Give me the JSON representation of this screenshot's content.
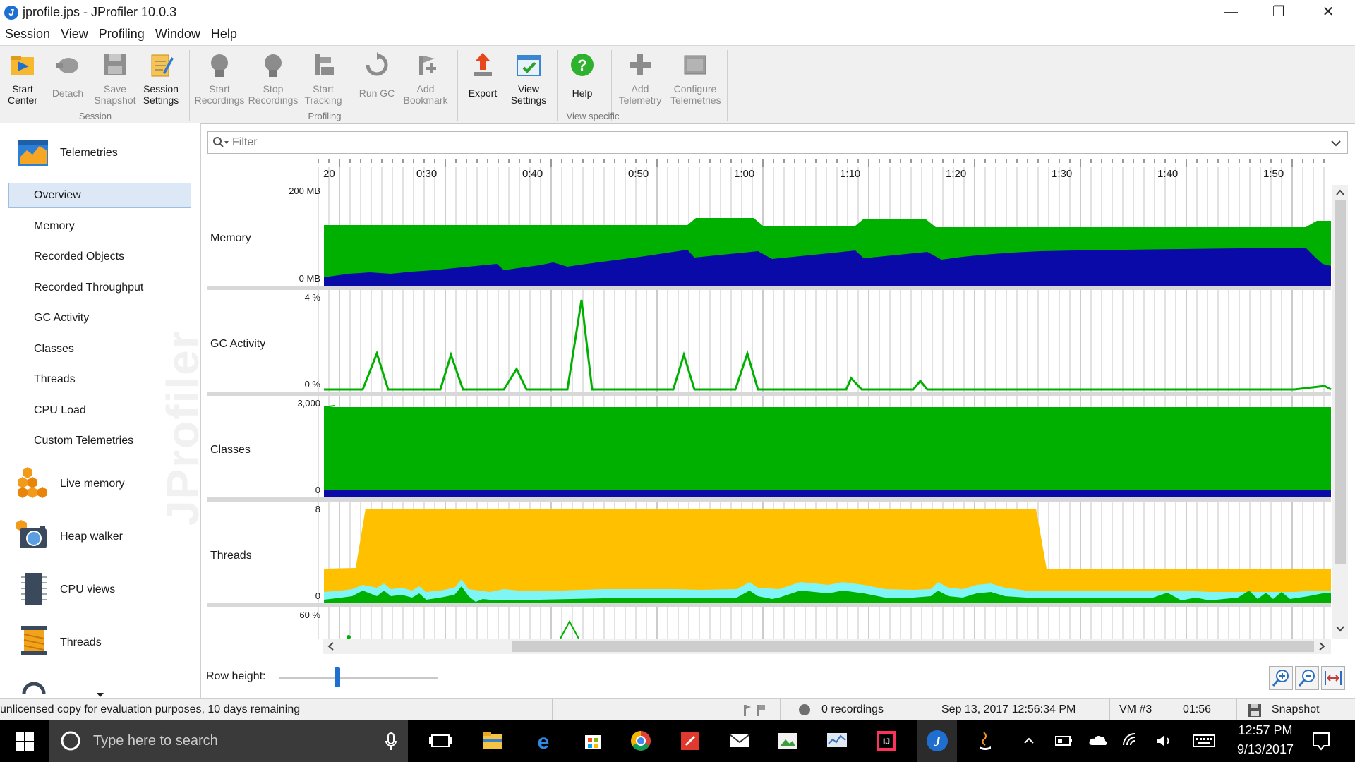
{
  "window": {
    "title": "jprofile.jps - JProfiler 10.0.3",
    "minimize": "—",
    "maximize": "❐",
    "close": "✕"
  },
  "menu": [
    "Session",
    "View",
    "Profiling",
    "Window",
    "Help"
  ],
  "toolbar": {
    "buttons": [
      {
        "l1": "Start",
        "l2": "Center",
        "icon": "start-center-icon"
      },
      {
        "l1": "Detach",
        "l2": "",
        "icon": "detach-icon"
      },
      {
        "l1": "Save",
        "l2": "Snapshot",
        "icon": "save-snapshot-icon"
      },
      {
        "l1": "Session",
        "l2": "Settings",
        "icon": "session-settings-icon"
      },
      {
        "l1": "Start",
        "l2": "Recordings",
        "icon": "start-recordings-icon"
      },
      {
        "l1": "Stop",
        "l2": "Recordings",
        "icon": "stop-recordings-icon"
      },
      {
        "l1": "Start",
        "l2": "Tracking",
        "icon": "start-tracking-icon"
      },
      {
        "l1": "Run GC",
        "l2": "",
        "icon": "run-gc-icon"
      },
      {
        "l1": "Add",
        "l2": "Bookmark",
        "icon": "add-bookmark-icon"
      },
      {
        "l1": "Export",
        "l2": "",
        "icon": "export-icon"
      },
      {
        "l1": "View",
        "l2": "Settings",
        "icon": "view-settings-icon"
      },
      {
        "l1": "Help",
        "l2": "",
        "icon": "help-icon"
      },
      {
        "l1": "Add",
        "l2": "Telemetry",
        "icon": "add-telemetry-icon"
      },
      {
        "l1": "Configure",
        "l2": "Telemetries",
        "icon": "configure-telemetries-icon"
      }
    ],
    "groups": [
      "Session",
      "Profiling",
      "View specific"
    ]
  },
  "sidebar": {
    "header": "Telemetries",
    "items": [
      "Overview",
      "Memory",
      "Recorded Objects",
      "Recorded Throughput",
      "GC Activity",
      "Classes",
      "Threads",
      "CPU Load",
      "Custom Telemetries"
    ],
    "sections": [
      "Live memory",
      "Heap walker",
      "CPU views",
      "Threads"
    ],
    "watermark": "JProfiler"
  },
  "filter": {
    "placeholder": "Filter"
  },
  "timeline": {
    "labels": [
      "20",
      "0:30",
      "0:40",
      "0:50",
      "1:00",
      "1:10",
      "1:20",
      "1:30",
      "1:40",
      "1:50"
    ]
  },
  "rows": [
    {
      "name": "Memory",
      "top": "200 MB",
      "bottom": "0 MB"
    },
    {
      "name": "GC Activity",
      "top": "4 %",
      "bottom": "0 %"
    },
    {
      "name": "Classes",
      "top": "3,000",
      "bottom": "0"
    },
    {
      "name": "Threads",
      "top": "8",
      "bottom": "0"
    },
    {
      "name": "",
      "top": "60 %",
      "bottom": ""
    }
  ],
  "row_height_label": "Row height:",
  "status": {
    "license": "unlicensed copy for evaluation purposes, 10 days remaining",
    "recordings": "0 recordings",
    "datetime": "Sep 13, 2017 12:56:34 PM",
    "vm": "VM #3",
    "elapsed": "01:56",
    "snapshot": "Snapshot"
  },
  "taskbar": {
    "search_placeholder": "Type here to search",
    "time": "12:57 PM",
    "date": "9/13/2017"
  },
  "colors": {
    "green": "#00b000",
    "blue": "#0a0aa8",
    "orange": "#ffc000",
    "cyan": "#7ff5f5"
  }
}
